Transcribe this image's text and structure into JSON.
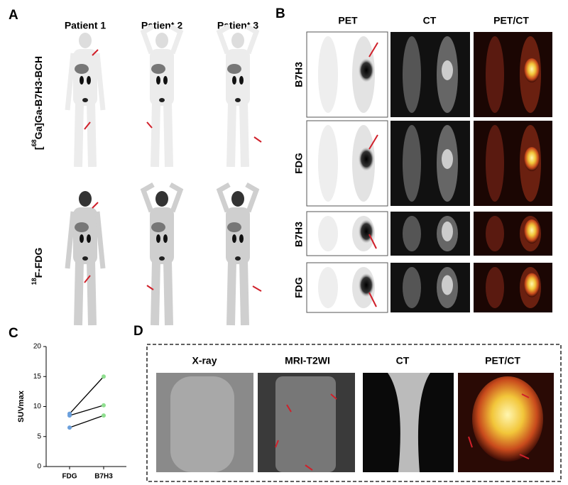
{
  "panel_letters": [
    "A",
    "B",
    "C",
    "D"
  ],
  "panel_a": {
    "patients": [
      "Patient 1",
      "Patient 2",
      "Patient 3"
    ],
    "tracers": [
      {
        "prefix": "[",
        "sup": "68",
        "main": "Ga]Ga-B7H3-BCH"
      },
      {
        "prefix": "",
        "sup": "18",
        "main": "F-FDG"
      }
    ]
  },
  "panel_b": {
    "columns": [
      "PET",
      "CT",
      "PET/CT"
    ],
    "rows": [
      "B7H3",
      "FDG",
      "B7H3",
      "FDG"
    ]
  },
  "panel_d": {
    "columns": [
      "X-ray",
      "MRI-T2WI",
      "CT",
      "PET/CT"
    ]
  },
  "chart_data": {
    "type": "line",
    "y_label": "SUVmax",
    "categories": [
      "FDG",
      "B7H3"
    ],
    "series": [
      {
        "values": [
          8.8,
          15
        ]
      },
      {
        "values": [
          8.5,
          10.2
        ]
      },
      {
        "values": [
          6.5,
          8.5
        ]
      }
    ],
    "point_colors": [
      "#6a9fdc",
      "#8fdf8f"
    ],
    "line_color": "#000000",
    "ylim": [
      0,
      20
    ],
    "yticks": [
      0,
      5,
      10,
      15,
      20
    ]
  }
}
